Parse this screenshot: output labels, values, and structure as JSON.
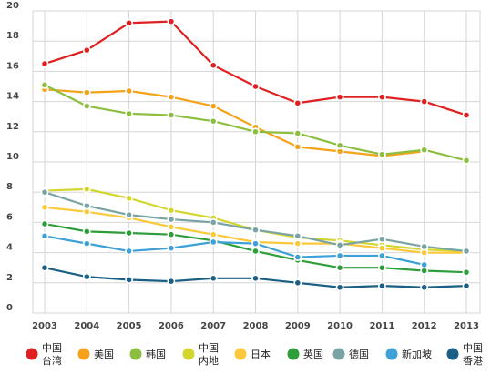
{
  "chart_data": {
    "type": "line",
    "title": "",
    "xlabel": "",
    "ylabel": "",
    "x": [
      "2003",
      "2004",
      "2005",
      "2006",
      "2007",
      "2008",
      "2009",
      "2010",
      "2011",
      "2012",
      "2013"
    ],
    "ylim": [
      0,
      20
    ],
    "yticks": [
      0,
      2,
      4,
      6,
      8,
      10,
      12,
      14,
      16,
      18,
      20
    ],
    "grid": true,
    "legend_position": "bottom",
    "series": [
      {
        "name": "中国台湾",
        "legend_lines": [
          "中国",
          "台湾"
        ],
        "color": "#e02020",
        "values": [
          16.5,
          17.4,
          19.2,
          19.3,
          16.4,
          15.0,
          13.9,
          14.3,
          14.3,
          14.0,
          13.1
        ]
      },
      {
        "name": "美国",
        "legend_lines": [
          "美国"
        ],
        "color": "#f5a21b",
        "values": [
          14.8,
          14.6,
          14.7,
          14.3,
          13.7,
          12.3,
          11.0,
          10.7,
          10.4,
          10.7,
          null
        ]
      },
      {
        "name": "韩国",
        "legend_lines": [
          "韩国"
        ],
        "color": "#8cbf3f",
        "values": [
          15.1,
          13.7,
          13.2,
          13.1,
          12.7,
          12.0,
          11.9,
          11.1,
          10.5,
          10.8,
          10.1
        ]
      },
      {
        "name": "中国内地",
        "legend_lines": [
          "中国",
          "内地"
        ],
        "color": "#d3d62e",
        "values": [
          8.1,
          8.2,
          7.6,
          6.8,
          6.3,
          5.5,
          5.0,
          4.8,
          4.5,
          4.2,
          4.1
        ]
      },
      {
        "name": "日本",
        "legend_lines": [
          "日本"
        ],
        "color": "#fcc83c",
        "values": [
          7.0,
          6.7,
          6.3,
          5.7,
          5.2,
          4.7,
          4.6,
          4.6,
          4.3,
          4.0,
          4.0
        ]
      },
      {
        "name": "英国",
        "legend_lines": [
          "英国"
        ],
        "color": "#2e9e3a",
        "values": [
          5.9,
          5.4,
          5.3,
          5.2,
          4.8,
          4.1,
          3.5,
          3.0,
          3.0,
          2.8,
          2.7
        ]
      },
      {
        "name": "德国",
        "legend_lines": [
          "德国"
        ],
        "color": "#7aa3a3",
        "values": [
          8.0,
          7.1,
          6.5,
          6.2,
          6.0,
          5.5,
          5.1,
          4.5,
          4.9,
          4.4,
          4.1
        ]
      },
      {
        "name": "新加坡",
        "legend_lines": [
          "新加坡"
        ],
        "color": "#3da0d6",
        "values": [
          5.1,
          4.6,
          4.1,
          4.3,
          4.7,
          4.6,
          3.7,
          3.8,
          3.8,
          3.2,
          null
        ]
      },
      {
        "name": "中国香港",
        "legend_lines": [
          "中国",
          "香港"
        ],
        "color": "#1c5f85",
        "values": [
          3.0,
          2.4,
          2.2,
          2.1,
          2.3,
          2.3,
          2.0,
          1.7,
          1.8,
          1.7,
          1.8
        ]
      }
    ]
  }
}
